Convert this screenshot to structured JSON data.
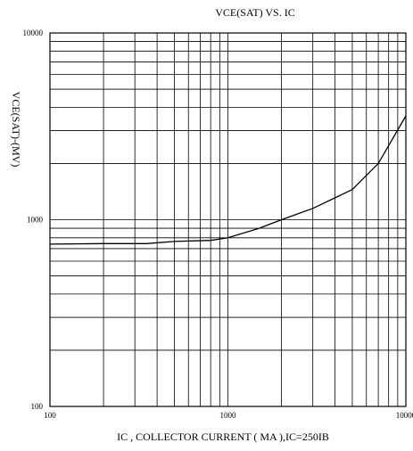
{
  "chart_data": {
    "type": "line",
    "title": "VCE(SAT) VS. IC",
    "xlabel": "IC , COLLECTOR CURRENT ( MA ),IC=250IB",
    "ylabel": "VCE(SAT)-(MV)",
    "x_scale": "log",
    "y_scale": "log",
    "xlim": [
      100,
      10000
    ],
    "ylim": [
      100,
      10000
    ],
    "x_ticks": [
      {
        "value": 100,
        "label": "100"
      },
      {
        "value": 1000,
        "label": "1000"
      },
      {
        "value": 10000,
        "label": "10000"
      }
    ],
    "y_ticks": [
      {
        "value": 100,
        "label": "100"
      },
      {
        "value": 1000,
        "label": "1000"
      },
      {
        "value": 10000,
        "label": "10000"
      }
    ],
    "grid": true,
    "series": [
      {
        "values": [
          {
            "x": 100,
            "y": 740
          },
          {
            "x": 200,
            "y": 745
          },
          {
            "x": 350,
            "y": 745
          },
          {
            "x": 500,
            "y": 765
          },
          {
            "x": 800,
            "y": 775
          },
          {
            "x": 1000,
            "y": 800
          },
          {
            "x": 1500,
            "y": 900
          },
          {
            "x": 2000,
            "y": 1000
          },
          {
            "x": 3000,
            "y": 1150
          },
          {
            "x": 5000,
            "y": 1450
          },
          {
            "x": 7000,
            "y": 2000
          },
          {
            "x": 10000,
            "y": 3600
          }
        ]
      }
    ]
  }
}
